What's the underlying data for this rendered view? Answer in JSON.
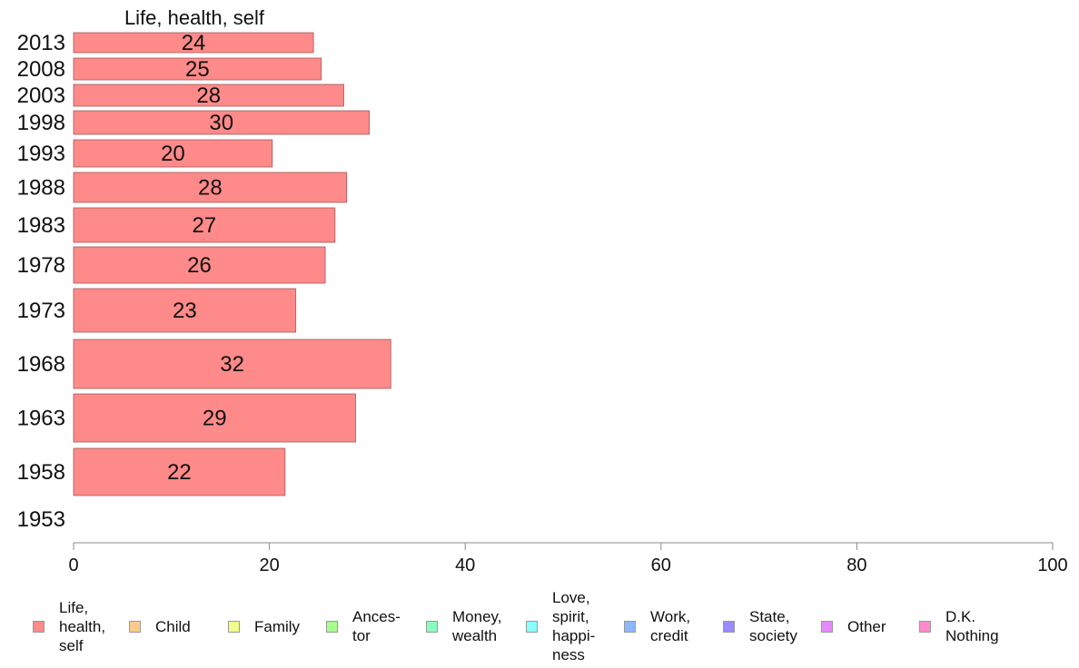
{
  "chart_data": {
    "type": "bar",
    "orientation": "horizontal",
    "panel_title": "Life, health, self",
    "categories": [
      "2013",
      "2008",
      "2003",
      "1998",
      "1993",
      "1988",
      "1983",
      "1978",
      "1973",
      "1968",
      "1963",
      "1958",
      "1953"
    ],
    "series": [
      {
        "name": "Life, health, self",
        "values": [
          24.5,
          25.3,
          27.6,
          30.2,
          20.3,
          27.9,
          26.7,
          25.7,
          22.7,
          32.4,
          28.8,
          21.6,
          null
        ],
        "labels": [
          "24",
          "25",
          "28",
          "30",
          "20",
          "28",
          "27",
          "26",
          "23",
          "32",
          "29",
          "22",
          ""
        ]
      }
    ],
    "xlim": [
      0,
      100
    ],
    "xticks": [
      "0",
      "20",
      "40",
      "60",
      "80",
      "100"
    ],
    "grid": false,
    "legend_position": "bottom",
    "legend": [
      {
        "label": "Life,\nhealth,\nself",
        "color": "#ff8a8a"
      },
      {
        "label": "Child",
        "color": "#ffc98a"
      },
      {
        "label": "Family",
        "color": "#f0ff8a"
      },
      {
        "label": "Ances-\ntor",
        "color": "#a8ff8a"
      },
      {
        "label": "Money,\nwealth",
        "color": "#8affc0"
      },
      {
        "label": "Love,\nspirit,\nhappi-\nness",
        "color": "#8affff"
      },
      {
        "label": "Work,\ncredit",
        "color": "#8ab8ff"
      },
      {
        "label": "State,\nsociety",
        "color": "#9a8aff"
      },
      {
        "label": "Other",
        "color": "#e88aff"
      },
      {
        "label": "D.K.\nNothing",
        "color": "#ff8ad0"
      }
    ],
    "bar_color": "#ff8a8a"
  }
}
